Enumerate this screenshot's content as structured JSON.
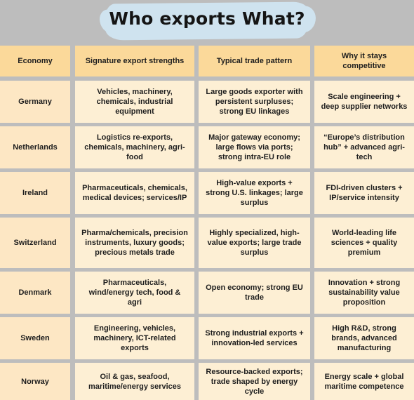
{
  "title": "Who exports What?",
  "colors": {
    "background": "#bdbdbd",
    "header_fill": "#fbd99a",
    "cell_fill": "#fdefd4",
    "title_highlight": "#cfe3ef"
  },
  "table": {
    "headers": [
      "Economy",
      "Signature export strengths",
      "Typical trade pattern",
      "Why it stays competitive"
    ],
    "rows": [
      {
        "economy": "Germany",
        "strengths": "Vehicles, machinery, chemicals, industrial equipment",
        "pattern": "Large goods exporter with persistent surpluses; strong EU linkages",
        "competitive": "Scale engineering + deep supplier networks"
      },
      {
        "economy": "Netherlands",
        "strengths": "Logistics re-exports, chemicals, machinery, agri-food",
        "pattern": "Major gateway economy; large flows via ports; strong intra-EU role",
        "competitive": "“Europe’s distribution hub” + advanced agri-tech"
      },
      {
        "economy": "Ireland",
        "strengths": "Pharmaceuticals, chemicals, medical devices; services/IP",
        "pattern": "High-value exports + strong U.S. linkages; large surplus",
        "competitive": "FDI-driven clusters + IP/service intensity"
      },
      {
        "economy": "Switzerland",
        "strengths": "Pharma/chemicals, precision instruments, luxury goods; precious metals trade",
        "pattern": "Highly specialized, high-value exports; large trade surplus",
        "competitive": "World-leading life sciences + quality premium"
      },
      {
        "economy": "Denmark",
        "strengths": "Pharmaceuticals, wind/energy tech, food & agri",
        "pattern": "Open economy; strong EU trade",
        "competitive": "Innovation + strong sustainability value proposition"
      },
      {
        "economy": "Sweden",
        "strengths": "Engineering, vehicles, machinery, ICT-related exports",
        "pattern": "Strong industrial exports + innovation-led services",
        "competitive": "High R&D, strong brands, advanced manufacturing"
      },
      {
        "economy": "Norway",
        "strengths": "Oil & gas, seafood, maritime/energy services",
        "pattern": "Resource-backed exports; trade shaped by energy cycle",
        "competitive": "Energy scale + global maritime competence"
      }
    ]
  }
}
